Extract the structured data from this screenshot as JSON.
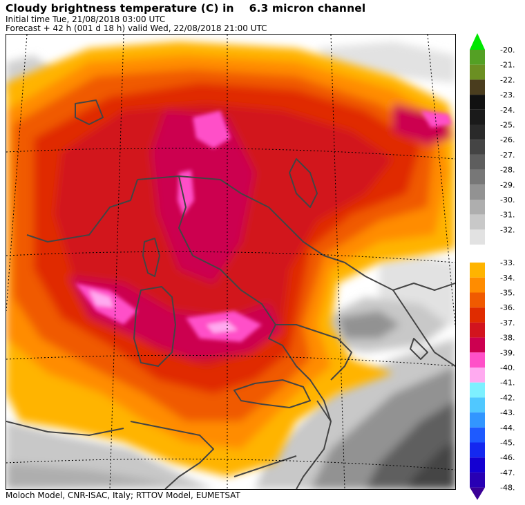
{
  "header": {
    "title": "Cloudy brightness temperature (C) in",
    "channel": "6.3 micron channel",
    "initial_time": "Initial time  Tue, 21/08/2018  03:00 UTC",
    "forecast": "Forecast  +  42 h  (001 d 18 h)  valid Wed, 22/08/2018 21:00 UTC"
  },
  "footer": {
    "credits": "Moloch Model, CNR-ISAC, Italy; RTTOV Model, EUMETSAT"
  },
  "legend": {
    "upper_arrow_color": "#00e600",
    "lower_arrow_color": "#3a0096",
    "upper_block": [
      {
        "label": "-20.",
        "color": "#54a024"
      },
      {
        "label": "-21.",
        "color": "#6b8f22"
      },
      {
        "label": "-22.",
        "color": "#4a3d1e"
      },
      {
        "label": "-23.",
        "color": "#111111"
      },
      {
        "label": "-24.",
        "color": "#1a1a1a"
      },
      {
        "label": "-25.",
        "color": "#2a2a2a"
      },
      {
        "label": "-26.",
        "color": "#444444"
      },
      {
        "label": "-27.",
        "color": "#5e5e5e"
      },
      {
        "label": "-28.",
        "color": "#777777"
      },
      {
        "label": "-29.",
        "color": "#929292"
      },
      {
        "label": "-30.",
        "color": "#aeaeae"
      },
      {
        "label": "-31.",
        "color": "#c8c8c8"
      },
      {
        "label": "-32.",
        "color": "#e2e2e2"
      }
    ],
    "lower_block": [
      {
        "label": "-33.",
        "color": "#ffb400"
      },
      {
        "label": "-34.",
        "color": "#ff8c00"
      },
      {
        "label": "-35.",
        "color": "#f05a00"
      },
      {
        "label": "-36.",
        "color": "#e02c00"
      },
      {
        "label": "-37.",
        "color": "#d2141e"
      },
      {
        "label": "-38.",
        "color": "#cc0050"
      },
      {
        "label": "-39.",
        "color": "#ff50c8"
      },
      {
        "label": "-40.",
        "color": "#ffaaf0"
      },
      {
        "label": "-41.",
        "color": "#7df0ff"
      },
      {
        "label": "-42.",
        "color": "#50c8ff"
      },
      {
        "label": "-43.",
        "color": "#3296ff"
      },
      {
        "label": "-44.",
        "color": "#1e5aff"
      },
      {
        "label": "-45.",
        "color": "#1428f0"
      },
      {
        "label": "-46.",
        "color": "#1400d2"
      },
      {
        "label": "-47.",
        "color": "#2800b4"
      }
    ],
    "final_label": "-48."
  },
  "map": {
    "background_color": "#ffffff",
    "grid_color": "#000000",
    "coast_color": "#444444"
  }
}
